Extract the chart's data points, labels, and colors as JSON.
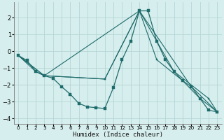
{
  "xlabel": "Humidex (Indice chaleur)",
  "xlim": [
    -0.5,
    23.5
  ],
  "ylim": [
    -4.3,
    2.9
  ],
  "bg_color": "#d6eeed",
  "grid_color": "#b5d5d5",
  "line_color": "#1e6b6b",
  "yticks": [
    -4,
    -3,
    -2,
    -1,
    0,
    1,
    2
  ],
  "xticks": [
    0,
    1,
    2,
    3,
    4,
    5,
    6,
    7,
    8,
    9,
    10,
    11,
    12,
    13,
    14,
    15,
    16,
    17,
    18,
    19,
    20,
    21,
    22,
    23
  ],
  "series": [
    {
      "x": [
        0,
        1,
        2,
        3,
        4,
        5,
        6,
        7,
        8,
        9,
        10,
        11,
        12,
        13,
        14,
        15,
        16,
        17,
        18,
        19,
        20,
        21,
        22,
        23
      ],
      "y": [
        -0.25,
        -0.55,
        -1.2,
        -1.45,
        -1.6,
        -2.1,
        -2.55,
        -3.1,
        -3.3,
        -3.35,
        -3.4,
        -2.15,
        -0.5,
        0.6,
        2.4,
        2.4,
        0.6,
        -0.5,
        -1.2,
        -1.75,
        -2.1,
        -2.8,
        -3.5,
        -3.6
      ]
    },
    {
      "x": [
        0,
        2,
        3,
        10,
        14,
        16,
        19,
        21,
        23
      ],
      "y": [
        -0.25,
        -1.2,
        -1.45,
        -1.65,
        2.4,
        -0.5,
        -1.75,
        -2.8,
        -3.6
      ]
    },
    {
      "x": [
        0,
        3,
        10,
        14,
        18,
        22,
        23
      ],
      "y": [
        -0.25,
        -1.45,
        -1.65,
        2.4,
        -1.2,
        -2.8,
        -3.6
      ]
    },
    {
      "x": [
        0,
        3,
        14,
        20,
        23
      ],
      "y": [
        -0.25,
        -1.45,
        2.4,
        -2.1,
        -3.6
      ]
    }
  ]
}
